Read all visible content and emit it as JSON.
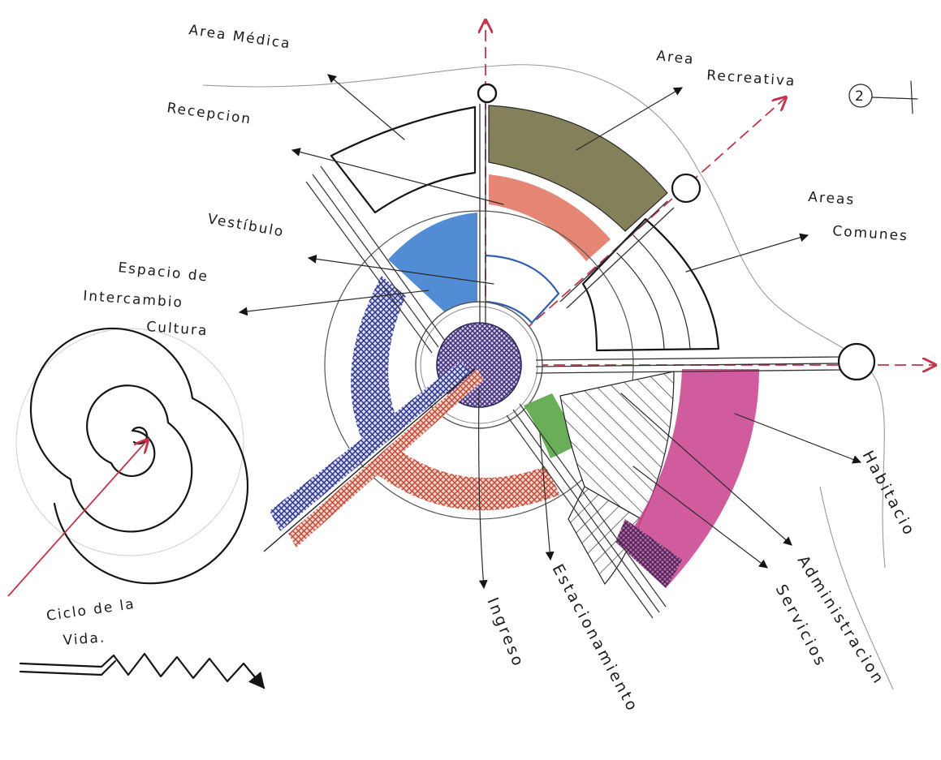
{
  "labels": {
    "area_medica": "Area Médica",
    "area_recreativa_1": "Area",
    "area_recreativa_2": "Recreativa",
    "recepcion": "Recepcion",
    "areas_comunes_1": "Areas",
    "areas_comunes_2": "Comunes",
    "vestibulo": "Vestíbulo",
    "espacio_1": "Espacio de",
    "espacio_2": "Intercambio",
    "espacio_3": "Cultura",
    "habitaciones": "Habitacio",
    "administracion": "Administracion",
    "servicios": "Servicios",
    "estacionamiento": "Estacionamiento",
    "ingreso": "Ingreso",
    "ciclo_1": "Ciclo de la",
    "ciclo_2": "Vida.",
    "corner_number": "2"
  },
  "colors": {
    "ink": "#151515",
    "axis_red": "#c3354a",
    "recreativa_olive": "#6e6a3c",
    "recepcion_salmon": "#e0705c",
    "vestibulo_blue": "#3f7fd0",
    "cultura_navy": "#2b3490",
    "ingreso_red": "#c24632",
    "estacionamiento_green": "#58a646",
    "habitaciones_magenta": "#c8408d",
    "core_navy": "#3a2f7c",
    "core_red": "#b03a3a"
  }
}
